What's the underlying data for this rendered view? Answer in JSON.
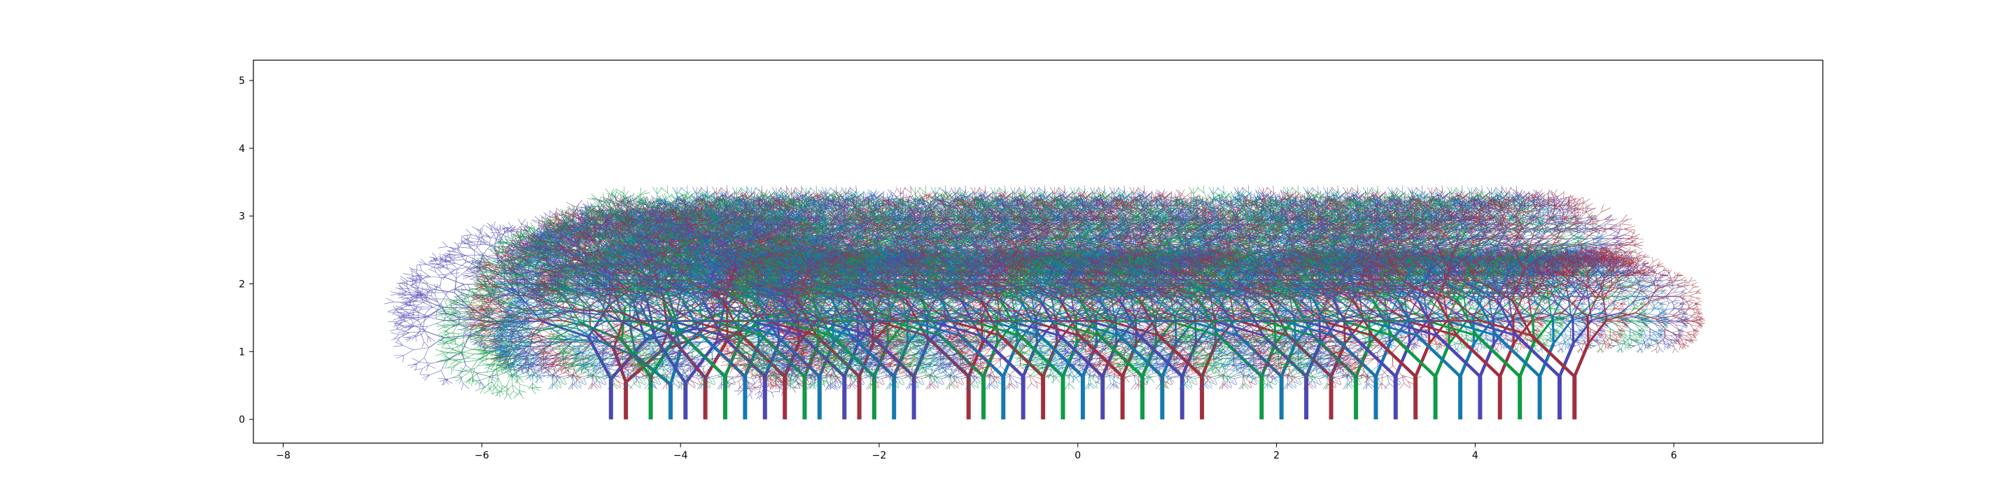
{
  "chart_data": {
    "type": "line",
    "title": "",
    "xlabel": "",
    "ylabel": "",
    "xlim": [
      -8.3,
      7.5
    ],
    "ylim": [
      -0.35,
      5.3
    ],
    "grid": false,
    "legend": "none",
    "x_ticks": [
      -8,
      -6,
      -4,
      -2,
      0,
      2,
      4,
      6
    ],
    "x_tick_labels": [
      "−8",
      "−6",
      "−4",
      "−2",
      "0",
      "2",
      "4",
      "6"
    ],
    "y_ticks": [
      0,
      1,
      2,
      3,
      4,
      5
    ],
    "y_tick_labels": [
      "0",
      "1",
      "2",
      "3",
      "4",
      "5"
    ],
    "palette": [
      "#4b47b3",
      "#a0303f",
      "#0f9a45",
      "#1479b0"
    ],
    "description_of_marks": "Dozens of recursively branching fractal trees; trunks rise from y=0 to roughly y=0.5 and the crowns spread up to about y=5.",
    "trunk_base_x": [
      -4.7,
      -4.55,
      -4.3,
      -4.1,
      -3.95,
      -3.75,
      -3.55,
      -3.35,
      -3.15,
      -2.95,
      -2.75,
      -2.6,
      -2.35,
      -2.2,
      -2.05,
      -1.85,
      -1.65,
      -1.1,
      -0.95,
      -0.75,
      -0.55,
      -0.35,
      -0.15,
      0.05,
      0.25,
      0.45,
      0.65,
      0.85,
      1.05,
      1.25,
      1.85,
      2.05,
      2.3,
      2.55,
      2.8,
      3.0,
      3.2,
      3.4,
      3.6,
      3.85,
      4.05,
      4.25,
      4.45,
      4.65,
      4.85,
      5.0
    ]
  }
}
